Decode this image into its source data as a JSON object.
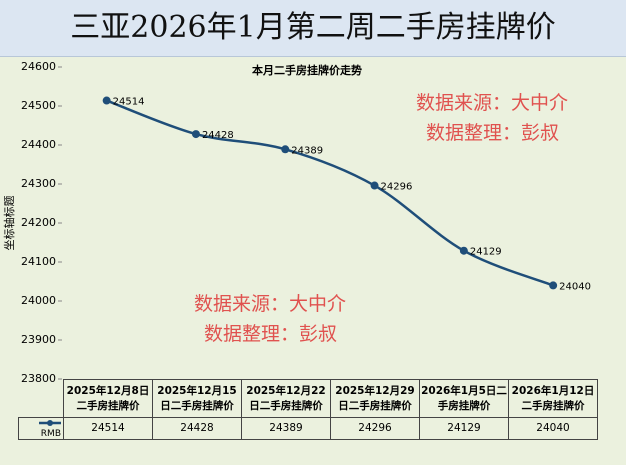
{
  "chart_data": {
    "type": "line",
    "title": "三亚2026年1月第二周二手房挂牌价",
    "subtitle": "本月二手房挂牌价走势",
    "y_label": "坐标轴标题",
    "categories": [
      "2025年12月8日二手房挂牌价",
      "2025年12月15日二手房挂牌价",
      "2025年12月22日二手房挂牌价",
      "2025年12月29日二手房挂牌价",
      "2026年1月5日二手房挂牌价",
      "2026年1月12日二手房挂牌价"
    ],
    "series": [
      {
        "name": "RMB",
        "color": "#1f4e79",
        "values": [
          24514,
          24428,
          24389,
          24296,
          24129,
          24040
        ]
      }
    ],
    "ylim": [
      23800,
      24600
    ],
    "yticks": [
      23800,
      23900,
      24000,
      24100,
      24200,
      24300,
      24400,
      24500,
      24600
    ],
    "watermarks": [
      "数据来源：大中介",
      "数据整理：彭叔"
    ],
    "watermark_color": "#e0524f"
  }
}
